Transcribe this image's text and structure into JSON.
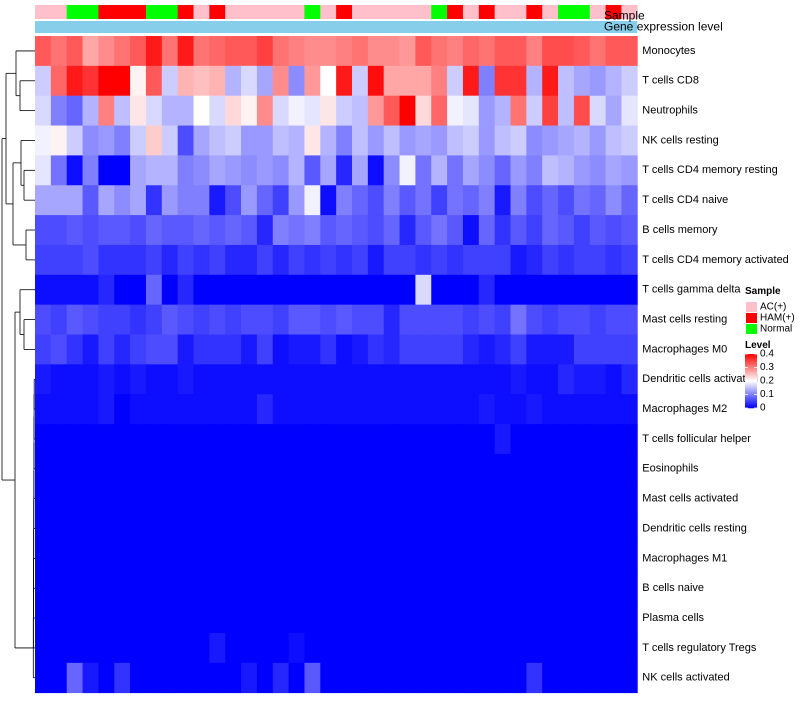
{
  "chart_data": {
    "type": "heatmap",
    "title": "",
    "annotation_tracks": [
      "Sample",
      "Gene expression level"
    ],
    "rows": [
      "Monocytes",
      "T cells CD8",
      "Neutrophils",
      "NK cells resting",
      "T cells CD4 memory resting",
      "T cells CD4 naive",
      "B cells memory",
      "T cells CD4 memory activated",
      "T cells gamma delta",
      "Mast cells resting",
      "Macrophages M0",
      "Dendritic cells activated",
      "Macrophages M2",
      "T cells follicular helper",
      "Eosinophils",
      "Mast cells activated",
      "Dendritic cells resting",
      "Macrophages M1",
      "B cells naive",
      "Plasma cells",
      "T cells regulatory  Tregs",
      "NK cells activated"
    ],
    "sample_groups": [
      "AC",
      "AC",
      "N",
      "N",
      "H",
      "H",
      "H",
      "N",
      "N",
      "H",
      "AC",
      "H",
      "AC",
      "AC",
      "AC",
      "AC",
      "AC",
      "N",
      "AC",
      "H",
      "AC",
      "AC",
      "AC",
      "AC",
      "AC",
      "N",
      "H",
      "AC",
      "H",
      "AC",
      "AC",
      "H",
      "AC",
      "N",
      "N",
      "AC",
      "H",
      "AC"
    ],
    "sample_legend": {
      "title": "Sample",
      "entries": [
        {
          "key": "AC",
          "label": "AC(+)",
          "color": "#ffc0cb"
        },
        {
          "key": "H",
          "label": "HAM(+)",
          "color": "#ff0000"
        },
        {
          "key": "N",
          "label": "Normal",
          "color": "#00ff00"
        }
      ]
    },
    "expression_track_color": "#87ceeb",
    "level_legend": {
      "title": "Level",
      "ticks": [
        0.4,
        0.3,
        0.2,
        0.1,
        0
      ],
      "tick_labels": [
        "0.4",
        "0.3",
        "0.2",
        "0.1",
        "0"
      ],
      "min": 0,
      "max": 0.4,
      "colors": {
        "low": "#0000ff",
        "mid": "#ffffff",
        "high": "#ff0000"
      }
    },
    "values": [
      [
        0.33,
        0.31,
        0.33,
        0.27,
        0.29,
        0.31,
        0.33,
        0.38,
        0.31,
        0.38,
        0.31,
        0.32,
        0.33,
        0.33,
        0.35,
        0.31,
        0.3,
        0.29,
        0.29,
        0.3,
        0.31,
        0.29,
        0.29,
        0.28,
        0.33,
        0.31,
        0.3,
        0.32,
        0.31,
        0.33,
        0.33,
        0.3,
        0.34,
        0.34,
        0.33,
        0.31,
        0.33,
        0.33
      ],
      [
        0.16,
        0.32,
        0.38,
        0.36,
        0.4,
        0.4,
        0.21,
        0.33,
        0.16,
        0.26,
        0.25,
        0.26,
        0.14,
        0.17,
        0.13,
        0.29,
        0.11,
        0.28,
        0.2,
        0.38,
        0.16,
        0.39,
        0.27,
        0.27,
        0.27,
        0.3,
        0.16,
        0.38,
        0.1,
        0.36,
        0.36,
        0.14,
        0.38,
        0.15,
        0.13,
        0.12,
        0.14,
        0.16
      ],
      [
        0.17,
        0.1,
        0.08,
        0.14,
        0.3,
        0.15,
        0.22,
        0.17,
        0.14,
        0.14,
        0.2,
        0.17,
        0.23,
        0.21,
        0.29,
        0.17,
        0.19,
        0.18,
        0.22,
        0.16,
        0.15,
        0.28,
        0.33,
        0.4,
        0.23,
        0.32,
        0.19,
        0.18,
        0.12,
        0.14,
        0.31,
        0.16,
        0.35,
        0.15,
        0.34,
        0.17,
        0.13,
        0.18
      ],
      [
        0.19,
        0.21,
        0.16,
        0.11,
        0.12,
        0.1,
        0.16,
        0.24,
        0.16,
        0.06,
        0.13,
        0.15,
        0.16,
        0.12,
        0.12,
        0.15,
        0.14,
        0.22,
        0.14,
        0.1,
        0.15,
        0.12,
        0.15,
        0.12,
        0.13,
        0.12,
        0.15,
        0.16,
        0.12,
        0.15,
        0.16,
        0.11,
        0.12,
        0.13,
        0.14,
        0.12,
        0.15,
        0.16
      ],
      [
        0.18,
        0.09,
        0.01,
        0.1,
        0.0,
        0.0,
        0.13,
        0.14,
        0.14,
        0.1,
        0.11,
        0.13,
        0.12,
        0.11,
        0.12,
        0.11,
        0.14,
        0.07,
        0.13,
        0.03,
        0.13,
        0.01,
        0.11,
        0.19,
        0.09,
        0.14,
        0.09,
        0.13,
        0.11,
        0.08,
        0.12,
        0.1,
        0.15,
        0.14,
        0.12,
        0.11,
        0.13,
        0.12
      ],
      [
        0.13,
        0.13,
        0.13,
        0.07,
        0.13,
        0.11,
        0.13,
        0.04,
        0.12,
        0.1,
        0.1,
        0.02,
        0.06,
        0.12,
        0.08,
        0.05,
        0.12,
        0.19,
        0.01,
        0.1,
        0.08,
        0.06,
        0.1,
        0.07,
        0.09,
        0.05,
        0.09,
        0.08,
        0.1,
        0.02,
        0.1,
        0.06,
        0.08,
        0.06,
        0.09,
        0.08,
        0.11,
        0.08
      ],
      [
        0.06,
        0.06,
        0.07,
        0.06,
        0.07,
        0.07,
        0.06,
        0.08,
        0.07,
        0.07,
        0.08,
        0.07,
        0.08,
        0.07,
        0.03,
        0.1,
        0.09,
        0.1,
        0.07,
        0.08,
        0.07,
        0.06,
        0.08,
        0.03,
        0.07,
        0.09,
        0.07,
        0.01,
        0.08,
        0.04,
        0.07,
        0.05,
        0.08,
        0.07,
        0.05,
        0.07,
        0.06,
        0.07
      ],
      [
        0.05,
        0.05,
        0.05,
        0.06,
        0.04,
        0.04,
        0.04,
        0.05,
        0.03,
        0.05,
        0.04,
        0.05,
        0.03,
        0.03,
        0.05,
        0.03,
        0.05,
        0.04,
        0.05,
        0.04,
        0.05,
        0.02,
        0.05,
        0.05,
        0.04,
        0.05,
        0.04,
        0.05,
        0.05,
        0.05,
        0.02,
        0.03,
        0.05,
        0.04,
        0.05,
        0.05,
        0.04,
        0.05
      ],
      [
        0.01,
        0.01,
        0.01,
        0.01,
        0.03,
        0.0,
        0.0,
        0.08,
        0.0,
        0.03,
        0.0,
        0.0,
        0.0,
        0.0,
        0.0,
        0.0,
        0.0,
        0.0,
        0.0,
        0.0,
        0.0,
        0.0,
        0.0,
        0.0,
        0.17,
        0.0,
        0.0,
        0.0,
        0.03,
        0.0,
        0.0,
        0.0,
        0.0,
        0.0,
        0.0,
        0.0,
        0.0,
        0.0
      ],
      [
        0.06,
        0.05,
        0.07,
        0.06,
        0.05,
        0.05,
        0.04,
        0.05,
        0.07,
        0.06,
        0.05,
        0.06,
        0.05,
        0.06,
        0.06,
        0.05,
        0.07,
        0.07,
        0.06,
        0.07,
        0.06,
        0.06,
        0.03,
        0.06,
        0.06,
        0.06,
        0.06,
        0.05,
        0.06,
        0.05,
        0.09,
        0.06,
        0.05,
        0.06,
        0.06,
        0.05,
        0.06,
        0.06
      ],
      [
        0.05,
        0.06,
        0.04,
        0.02,
        0.05,
        0.03,
        0.05,
        0.06,
        0.06,
        0.02,
        0.04,
        0.04,
        0.04,
        0.02,
        0.05,
        0.01,
        0.02,
        0.02,
        0.04,
        0.01,
        0.02,
        0.04,
        0.03,
        0.05,
        0.05,
        0.05,
        0.05,
        0.03,
        0.02,
        0.03,
        0.05,
        0.02,
        0.02,
        0.02,
        0.05,
        0.05,
        0.05,
        0.05
      ],
      [
        0.02,
        0.01,
        0.01,
        0.01,
        0.02,
        0.01,
        0.02,
        0.01,
        0.01,
        0.02,
        0.01,
        0.01,
        0.01,
        0.01,
        0.01,
        0.01,
        0.01,
        0.01,
        0.01,
        0.01,
        0.01,
        0.01,
        0.01,
        0.01,
        0.01,
        0.01,
        0.01,
        0.01,
        0.01,
        0.01,
        0.02,
        0.01,
        0.01,
        0.03,
        0.02,
        0.02,
        0.01,
        0.03
      ],
      [
        0.01,
        0.01,
        0.01,
        0.01,
        0.02,
        0.0,
        0.01,
        0.01,
        0.01,
        0.01,
        0.01,
        0.01,
        0.01,
        0.01,
        0.03,
        0.01,
        0.01,
        0.01,
        0.01,
        0.01,
        0.01,
        0.01,
        0.01,
        0.01,
        0.01,
        0.01,
        0.01,
        0.01,
        0.02,
        0.01,
        0.01,
        0.02,
        0.01,
        0.01,
        0.01,
        0.01,
        0.01,
        0.01
      ],
      [
        0.0,
        0.0,
        0.0,
        0.0,
        0.0,
        0.0,
        0.0,
        0.0,
        0.0,
        0.0,
        0.0,
        0.0,
        0.0,
        0.0,
        0.0,
        0.0,
        0.0,
        0.0,
        0.0,
        0.0,
        0.0,
        0.0,
        0.0,
        0.0,
        0.0,
        0.0,
        0.0,
        0.0,
        0.0,
        0.02,
        0.0,
        0.0,
        0.0,
        0.0,
        0.0,
        0.0,
        0.0,
        0.0
      ],
      [
        0.0,
        0.0,
        0.0,
        0.0,
        0.0,
        0.0,
        0.0,
        0.0,
        0.0,
        0.0,
        0.0,
        0.0,
        0.0,
        0.0,
        0.0,
        0.0,
        0.0,
        0.0,
        0.0,
        0.0,
        0.0,
        0.0,
        0.0,
        0.0,
        0.0,
        0.0,
        0.0,
        0.0,
        0.0,
        0.0,
        0.0,
        0.0,
        0.0,
        0.0,
        0.0,
        0.0,
        0.0,
        0.0
      ],
      [
        0.0,
        0.0,
        0.0,
        0.0,
        0.0,
        0.0,
        0.0,
        0.0,
        0.0,
        0.0,
        0.0,
        0.0,
        0.0,
        0.0,
        0.0,
        0.0,
        0.0,
        0.0,
        0.0,
        0.0,
        0.0,
        0.0,
        0.0,
        0.0,
        0.0,
        0.0,
        0.0,
        0.0,
        0.0,
        0.0,
        0.0,
        0.0,
        0.0,
        0.0,
        0.0,
        0.0,
        0.0,
        0.0
      ],
      [
        0.0,
        0.0,
        0.0,
        0.0,
        0.0,
        0.0,
        0.0,
        0.0,
        0.0,
        0.0,
        0.0,
        0.0,
        0.0,
        0.0,
        0.0,
        0.0,
        0.0,
        0.0,
        0.0,
        0.0,
        0.0,
        0.0,
        0.0,
        0.0,
        0.0,
        0.0,
        0.0,
        0.0,
        0.0,
        0.0,
        0.0,
        0.0,
        0.0,
        0.0,
        0.0,
        0.0,
        0.0,
        0.0
      ],
      [
        0.0,
        0.0,
        0.0,
        0.0,
        0.0,
        0.0,
        0.0,
        0.0,
        0.0,
        0.0,
        0.0,
        0.0,
        0.0,
        0.0,
        0.0,
        0.0,
        0.0,
        0.0,
        0.0,
        0.0,
        0.0,
        0.0,
        0.0,
        0.0,
        0.0,
        0.0,
        0.0,
        0.0,
        0.0,
        0.0,
        0.0,
        0.0,
        0.0,
        0.0,
        0.0,
        0.0,
        0.0,
        0.0
      ],
      [
        0.0,
        0.0,
        0.0,
        0.0,
        0.0,
        0.0,
        0.0,
        0.0,
        0.0,
        0.0,
        0.0,
        0.0,
        0.0,
        0.0,
        0.0,
        0.0,
        0.0,
        0.0,
        0.0,
        0.0,
        0.0,
        0.0,
        0.0,
        0.0,
        0.0,
        0.0,
        0.0,
        0.0,
        0.0,
        0.0,
        0.0,
        0.0,
        0.0,
        0.0,
        0.0,
        0.0,
        0.0,
        0.0
      ],
      [
        0.0,
        0.0,
        0.0,
        0.0,
        0.0,
        0.0,
        0.0,
        0.0,
        0.0,
        0.0,
        0.0,
        0.0,
        0.0,
        0.0,
        0.0,
        0.0,
        0.0,
        0.0,
        0.0,
        0.0,
        0.0,
        0.0,
        0.0,
        0.0,
        0.0,
        0.0,
        0.0,
        0.0,
        0.0,
        0.0,
        0.0,
        0.0,
        0.0,
        0.0,
        0.0,
        0.0,
        0.0,
        0.0
      ],
      [
        0.0,
        0.0,
        0.0,
        0.0,
        0.0,
        0.0,
        0.0,
        0.0,
        0.0,
        0.0,
        0.0,
        0.02,
        0.0,
        0.0,
        0.0,
        0.0,
        0.01,
        0.0,
        0.0,
        0.0,
        0.0,
        0.0,
        0.0,
        0.0,
        0.0,
        0.0,
        0.0,
        0.0,
        0.0,
        0.0,
        0.0,
        0.0,
        0.0,
        0.0,
        0.0,
        0.0,
        0.0,
        0.0
      ],
      [
        0.0,
        0.0,
        0.08,
        0.02,
        0.0,
        0.04,
        0.0,
        0.0,
        0.0,
        0.0,
        0.0,
        0.0,
        0.0,
        0.02,
        0.0,
        0.03,
        0.0,
        0.07,
        0.0,
        0.0,
        0.0,
        0.0,
        0.0,
        0.0,
        0.0,
        0.0,
        0.0,
        0.0,
        0.0,
        0.0,
        0.0,
        0.04,
        0.0,
        0.0,
        0.0,
        0.0,
        0.0,
        0.0
      ]
    ]
  }
}
